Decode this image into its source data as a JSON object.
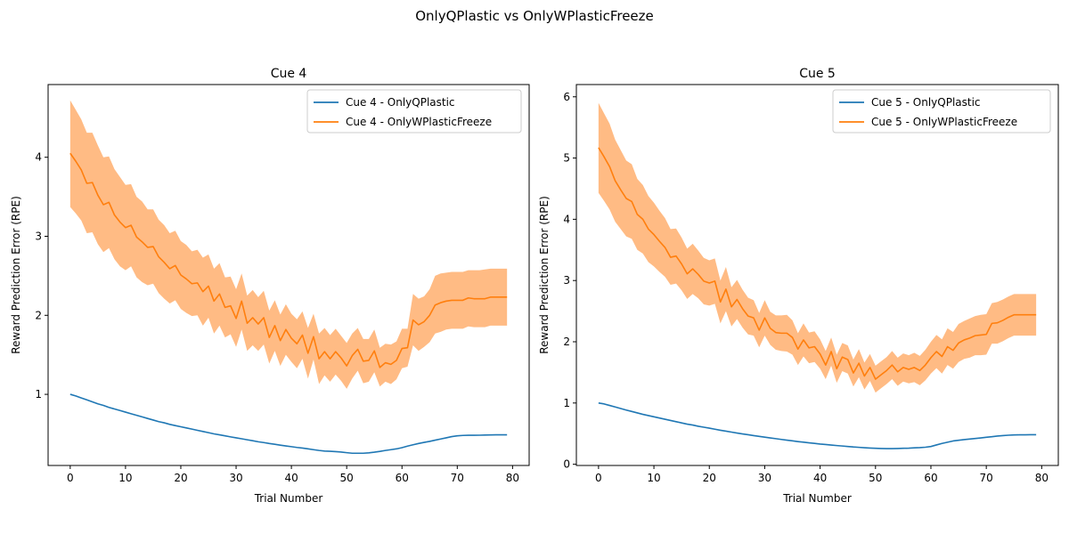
{
  "suptitle": "OnlyQPlastic vs OnlyWPlasticFreeze",
  "colors": {
    "blue": "#1f77b4",
    "orange": "#ff7f0e",
    "band": "#ffbb84"
  },
  "chart_data": [
    {
      "type": "line",
      "title": "Cue 4",
      "xlabel": "Trial Number",
      "ylabel": "Reward Prediction Error (RPE)",
      "xlim": [
        -4,
        83
      ],
      "ylim": [
        0.1,
        4.92
      ],
      "xticks": [
        0,
        10,
        20,
        30,
        40,
        50,
        60,
        70,
        80
      ],
      "yticks": [
        1,
        2,
        3,
        4
      ],
      "legend": "top-right",
      "series": [
        {
          "name": "Cue 4 - OnlyQPlastic",
          "color": "#1f77b4",
          "x": [
            0,
            1,
            2,
            3,
            4,
            5,
            6,
            7,
            8,
            9,
            10,
            11,
            12,
            13,
            14,
            15,
            16,
            17,
            18,
            19,
            20,
            21,
            22,
            23,
            24,
            25,
            26,
            27,
            28,
            29,
            30,
            31,
            32,
            33,
            34,
            35,
            36,
            37,
            38,
            39,
            40,
            41,
            42,
            43,
            44,
            45,
            46,
            47,
            48,
            49,
            50,
            51,
            52,
            53,
            54,
            55,
            56,
            57,
            58,
            59,
            60,
            61,
            62,
            63,
            64,
            65,
            66,
            67,
            68,
            69,
            70,
            71,
            72,
            73,
            74,
            75,
            76,
            77,
            78,
            79
          ],
          "y": [
            1.0,
            0.98,
            0.955,
            0.93,
            0.905,
            0.88,
            0.86,
            0.835,
            0.815,
            0.795,
            0.775,
            0.755,
            0.735,
            0.715,
            0.695,
            0.675,
            0.655,
            0.64,
            0.62,
            0.605,
            0.59,
            0.575,
            0.56,
            0.545,
            0.53,
            0.515,
            0.5,
            0.488,
            0.475,
            0.462,
            0.45,
            0.438,
            0.425,
            0.413,
            0.4,
            0.39,
            0.378,
            0.368,
            0.357,
            0.347,
            0.338,
            0.328,
            0.32,
            0.31,
            0.3,
            0.29,
            0.282,
            0.28,
            0.275,
            0.27,
            0.262,
            0.255,
            0.255,
            0.255,
            0.26,
            0.268,
            0.278,
            0.29,
            0.3,
            0.31,
            0.325,
            0.345,
            0.362,
            0.378,
            0.392,
            0.405,
            0.42,
            0.435,
            0.45,
            0.465,
            0.475,
            0.48,
            0.482,
            0.482,
            0.483,
            0.485,
            0.487,
            0.488,
            0.488,
            0.488
          ]
        },
        {
          "name": "Cue 4 - OnlyWPlasticFreeze",
          "color": "#ff7f0e",
          "x": [
            0,
            1,
            2,
            3,
            4,
            5,
            6,
            7,
            8,
            9,
            10,
            11,
            12,
            13,
            14,
            15,
            16,
            17,
            18,
            19,
            20,
            21,
            22,
            23,
            24,
            25,
            26,
            27,
            28,
            29,
            30,
            31,
            32,
            33,
            34,
            35,
            36,
            37,
            38,
            39,
            40,
            41,
            42,
            43,
            44,
            45,
            46,
            47,
            48,
            49,
            50,
            51,
            52,
            53,
            54,
            55,
            56,
            57,
            58,
            59,
            60,
            61,
            62,
            63,
            64,
            65,
            66,
            67,
            68,
            69,
            70,
            71,
            72,
            73,
            74,
            75,
            76,
            77,
            78,
            79
          ],
          "y": [
            4.05,
            3.95,
            3.84,
            3.67,
            3.68,
            3.52,
            3.4,
            3.43,
            3.27,
            3.18,
            3.11,
            3.14,
            2.99,
            2.93,
            2.86,
            2.87,
            2.74,
            2.67,
            2.59,
            2.63,
            2.51,
            2.46,
            2.4,
            2.41,
            2.3,
            2.37,
            2.18,
            2.27,
            2.1,
            2.12,
            1.96,
            2.18,
            1.9,
            1.97,
            1.89,
            1.97,
            1.72,
            1.87,
            1.68,
            1.82,
            1.71,
            1.64,
            1.75,
            1.52,
            1.73,
            1.45,
            1.54,
            1.45,
            1.54,
            1.46,
            1.36,
            1.49,
            1.57,
            1.42,
            1.43,
            1.55,
            1.34,
            1.4,
            1.38,
            1.43,
            1.58,
            1.59,
            1.94,
            1.88,
            1.92,
            2.0,
            2.13,
            2.16,
            2.18,
            2.19,
            2.19,
            2.19,
            2.22,
            2.21,
            2.21,
            2.21,
            2.23,
            2.23,
            2.23,
            2.23
          ],
          "band_upper": [
            4.72,
            4.6,
            4.48,
            4.31,
            4.31,
            4.15,
            4.0,
            4.01,
            3.85,
            3.75,
            3.65,
            3.66,
            3.5,
            3.44,
            3.34,
            3.34,
            3.21,
            3.14,
            3.04,
            3.07,
            2.94,
            2.89,
            2.81,
            2.83,
            2.73,
            2.77,
            2.59,
            2.66,
            2.48,
            2.49,
            2.33,
            2.53,
            2.25,
            2.32,
            2.23,
            2.31,
            2.06,
            2.19,
            2.01,
            2.14,
            2.02,
            1.95,
            2.05,
            1.84,
            2.02,
            1.77,
            1.84,
            1.75,
            1.83,
            1.74,
            1.65,
            1.77,
            1.84,
            1.7,
            1.7,
            1.82,
            1.59,
            1.64,
            1.63,
            1.67,
            1.83,
            1.83,
            2.27,
            2.21,
            2.24,
            2.33,
            2.5,
            2.53,
            2.54,
            2.55,
            2.55,
            2.55,
            2.57,
            2.57,
            2.57,
            2.58,
            2.59,
            2.59,
            2.59,
            2.59
          ],
          "band_lower": [
            3.37,
            3.29,
            3.2,
            3.04,
            3.05,
            2.9,
            2.8,
            2.85,
            2.71,
            2.62,
            2.57,
            2.62,
            2.48,
            2.42,
            2.38,
            2.4,
            2.28,
            2.21,
            2.15,
            2.19,
            2.08,
            2.03,
            1.99,
            2.0,
            1.87,
            1.97,
            1.77,
            1.87,
            1.72,
            1.76,
            1.6,
            1.82,
            1.55,
            1.62,
            1.55,
            1.63,
            1.39,
            1.55,
            1.36,
            1.5,
            1.41,
            1.33,
            1.45,
            1.2,
            1.44,
            1.13,
            1.24,
            1.16,
            1.25,
            1.17,
            1.07,
            1.2,
            1.3,
            1.14,
            1.16,
            1.28,
            1.1,
            1.16,
            1.13,
            1.19,
            1.33,
            1.35,
            1.62,
            1.55,
            1.6,
            1.66,
            1.77,
            1.79,
            1.82,
            1.83,
            1.83,
            1.83,
            1.86,
            1.85,
            1.85,
            1.85,
            1.87,
            1.87,
            1.87,
            1.87
          ]
        }
      ]
    },
    {
      "type": "line",
      "title": "Cue 5",
      "xlabel": "Trial Number",
      "ylabel": "Reward Prediction Error (RPE)",
      "xlim": [
        -4,
        83
      ],
      "ylim": [
        -0.02,
        6.2
      ],
      "xticks": [
        0,
        10,
        20,
        30,
        40,
        50,
        60,
        70,
        80
      ],
      "yticks": [
        0,
        1,
        2,
        3,
        4,
        5,
        6
      ],
      "legend": "top-right",
      "series": [
        {
          "name": "Cue 5 - OnlyQPlastic",
          "color": "#1f77b4",
          "x": [
            0,
            1,
            2,
            3,
            4,
            5,
            6,
            7,
            8,
            9,
            10,
            11,
            12,
            13,
            14,
            15,
            16,
            17,
            18,
            19,
            20,
            21,
            22,
            23,
            24,
            25,
            26,
            27,
            28,
            29,
            30,
            31,
            32,
            33,
            34,
            35,
            36,
            37,
            38,
            39,
            40,
            41,
            42,
            43,
            44,
            45,
            46,
            47,
            48,
            49,
            50,
            51,
            52,
            53,
            54,
            55,
            56,
            57,
            58,
            59,
            60,
            61,
            62,
            63,
            64,
            65,
            66,
            67,
            68,
            69,
            70,
            71,
            72,
            73,
            74,
            75,
            76,
            77,
            78,
            79
          ],
          "y": [
            1.0,
            0.985,
            0.96,
            0.935,
            0.91,
            0.885,
            0.862,
            0.838,
            0.815,
            0.795,
            0.775,
            0.755,
            0.735,
            0.715,
            0.695,
            0.675,
            0.655,
            0.64,
            0.62,
            0.605,
            0.59,
            0.572,
            0.555,
            0.54,
            0.525,
            0.51,
            0.495,
            0.482,
            0.468,
            0.455,
            0.442,
            0.43,
            0.418,
            0.405,
            0.393,
            0.382,
            0.37,
            0.36,
            0.35,
            0.34,
            0.33,
            0.322,
            0.313,
            0.305,
            0.298,
            0.29,
            0.282,
            0.276,
            0.27,
            0.265,
            0.26,
            0.257,
            0.255,
            0.255,
            0.257,
            0.26,
            0.263,
            0.268,
            0.272,
            0.278,
            0.29,
            0.315,
            0.34,
            0.36,
            0.38,
            0.392,
            0.402,
            0.412,
            0.42,
            0.43,
            0.44,
            0.45,
            0.46,
            0.468,
            0.474,
            0.478,
            0.48,
            0.481,
            0.482,
            0.482
          ]
        },
        {
          "name": "Cue 5 - OnlyWPlasticFreeze",
          "color": "#ff7f0e",
          "x": [
            0,
            1,
            2,
            3,
            4,
            5,
            6,
            7,
            8,
            9,
            10,
            11,
            12,
            13,
            14,
            15,
            16,
            17,
            18,
            19,
            20,
            21,
            22,
            23,
            24,
            25,
            26,
            27,
            28,
            29,
            30,
            31,
            32,
            33,
            34,
            35,
            36,
            37,
            38,
            39,
            40,
            41,
            42,
            43,
            44,
            45,
            46,
            47,
            48,
            49,
            50,
            51,
            52,
            53,
            54,
            55,
            56,
            57,
            58,
            59,
            60,
            61,
            62,
            63,
            64,
            65,
            66,
            67,
            68,
            69,
            70,
            71,
            72,
            73,
            74,
            75,
            76,
            77,
            78,
            79
          ],
          "y": [
            5.17,
            5.02,
            4.86,
            4.63,
            4.48,
            4.34,
            4.29,
            4.08,
            4.0,
            3.84,
            3.75,
            3.64,
            3.54,
            3.38,
            3.4,
            3.27,
            3.11,
            3.19,
            3.1,
            2.99,
            2.96,
            2.99,
            2.65,
            2.86,
            2.57,
            2.69,
            2.54,
            2.42,
            2.39,
            2.19,
            2.39,
            2.22,
            2.15,
            2.14,
            2.14,
            2.07,
            1.88,
            2.03,
            1.9,
            1.92,
            1.8,
            1.62,
            1.84,
            1.56,
            1.75,
            1.71,
            1.49,
            1.65,
            1.44,
            1.58,
            1.39,
            1.46,
            1.53,
            1.62,
            1.51,
            1.58,
            1.55,
            1.58,
            1.53,
            1.62,
            1.74,
            1.84,
            1.76,
            1.92,
            1.86,
            1.98,
            2.03,
            2.06,
            2.1,
            2.11,
            2.12,
            2.3,
            2.31,
            2.35,
            2.4,
            2.44,
            2.44,
            2.44,
            2.44,
            2.44
          ],
          "band_upper": [
            5.9,
            5.73,
            5.56,
            5.3,
            5.13,
            4.96,
            4.9,
            4.66,
            4.56,
            4.38,
            4.27,
            4.14,
            4.02,
            3.84,
            3.85,
            3.7,
            3.52,
            3.6,
            3.49,
            3.37,
            3.33,
            3.36,
            3.0,
            3.22,
            2.89,
            3.01,
            2.85,
            2.72,
            2.68,
            2.47,
            2.68,
            2.49,
            2.43,
            2.43,
            2.44,
            2.35,
            2.14,
            2.3,
            2.15,
            2.17,
            2.04,
            1.85,
            2.07,
            1.79,
            1.98,
            1.94,
            1.71,
            1.88,
            1.66,
            1.8,
            1.61,
            1.68,
            1.75,
            1.85,
            1.74,
            1.81,
            1.78,
            1.82,
            1.77,
            1.87,
            2.0,
            2.11,
            2.04,
            2.22,
            2.16,
            2.29,
            2.34,
            2.38,
            2.42,
            2.44,
            2.45,
            2.63,
            2.65,
            2.69,
            2.74,
            2.78,
            2.78,
            2.78,
            2.78,
            2.78
          ],
          "band_lower": [
            4.43,
            4.3,
            4.16,
            3.96,
            3.84,
            3.72,
            3.68,
            3.5,
            3.44,
            3.3,
            3.23,
            3.14,
            3.06,
            2.93,
            2.95,
            2.84,
            2.7,
            2.78,
            2.71,
            2.61,
            2.59,
            2.62,
            2.3,
            2.5,
            2.25,
            2.37,
            2.23,
            2.12,
            2.1,
            1.91,
            2.1,
            1.95,
            1.87,
            1.85,
            1.84,
            1.79,
            1.62,
            1.76,
            1.65,
            1.67,
            1.56,
            1.39,
            1.61,
            1.33,
            1.52,
            1.48,
            1.27,
            1.42,
            1.22,
            1.36,
            1.17,
            1.24,
            1.31,
            1.39,
            1.28,
            1.35,
            1.32,
            1.34,
            1.29,
            1.37,
            1.48,
            1.57,
            1.48,
            1.62,
            1.56,
            1.67,
            1.72,
            1.74,
            1.78,
            1.78,
            1.79,
            1.97,
            1.97,
            2.01,
            2.06,
            2.1,
            2.1,
            2.1,
            2.1,
            2.1
          ]
        }
      ]
    }
  ]
}
